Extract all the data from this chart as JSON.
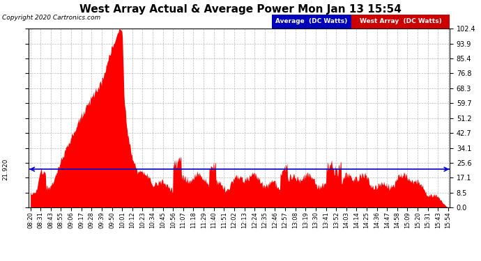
{
  "title": "West Array Actual & Average Power Mon Jan 13 15:54",
  "copyright": "Copyright 2020 Cartronics.com",
  "legend_labels": [
    "Average  (DC Watts)",
    "West Array  (DC Watts)"
  ],
  "legend_colors": [
    "#0000bb",
    "#cc0000"
  ],
  "avg_value": 21.92,
  "y_ticks_right": [
    0.0,
    8.5,
    17.1,
    25.6,
    34.1,
    42.7,
    51.2,
    59.7,
    68.3,
    76.8,
    85.4,
    93.9,
    102.4
  ],
  "y_max": 102.4,
  "y_min": 0.0,
  "bg_color": "#ffffff",
  "grid_color": "#aaaaaa",
  "fill_color": "#ff0000",
  "avg_line_color": "#0000cc",
  "x_tick_labels": [
    "08:20",
    "08:31",
    "08:43",
    "08:55",
    "09:06",
    "09:17",
    "09:28",
    "09:39",
    "09:50",
    "10:01",
    "10:12",
    "10:23",
    "10:34",
    "10:45",
    "10:56",
    "11:07",
    "11:18",
    "11:29",
    "11:40",
    "11:51",
    "12:02",
    "12:13",
    "12:24",
    "12:35",
    "12:46",
    "12:57",
    "13:08",
    "13:19",
    "13:30",
    "13:41",
    "13:52",
    "14:03",
    "14:14",
    "14:25",
    "14:36",
    "14:47",
    "14:58",
    "15:09",
    "15:20",
    "15:31",
    "15:43",
    "15:54"
  ],
  "fig_width": 6.9,
  "fig_height": 3.75,
  "dpi": 100
}
